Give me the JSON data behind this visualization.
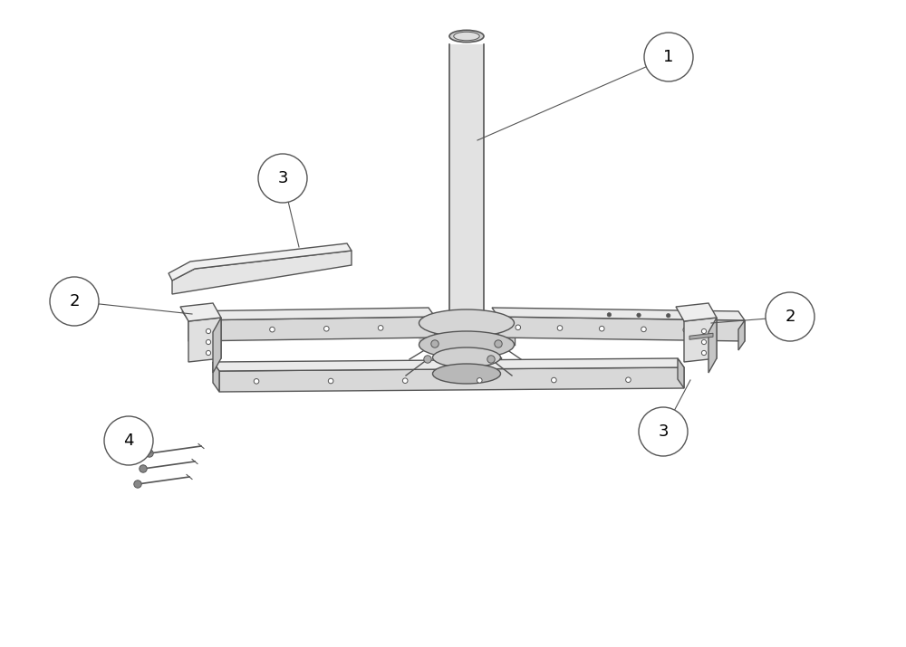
{
  "background_color": "#ffffff",
  "line_color": "#555555",
  "label_font_size": 13,
  "figure_width": 10.0,
  "figure_height": 7.15,
  "dpi": 100
}
